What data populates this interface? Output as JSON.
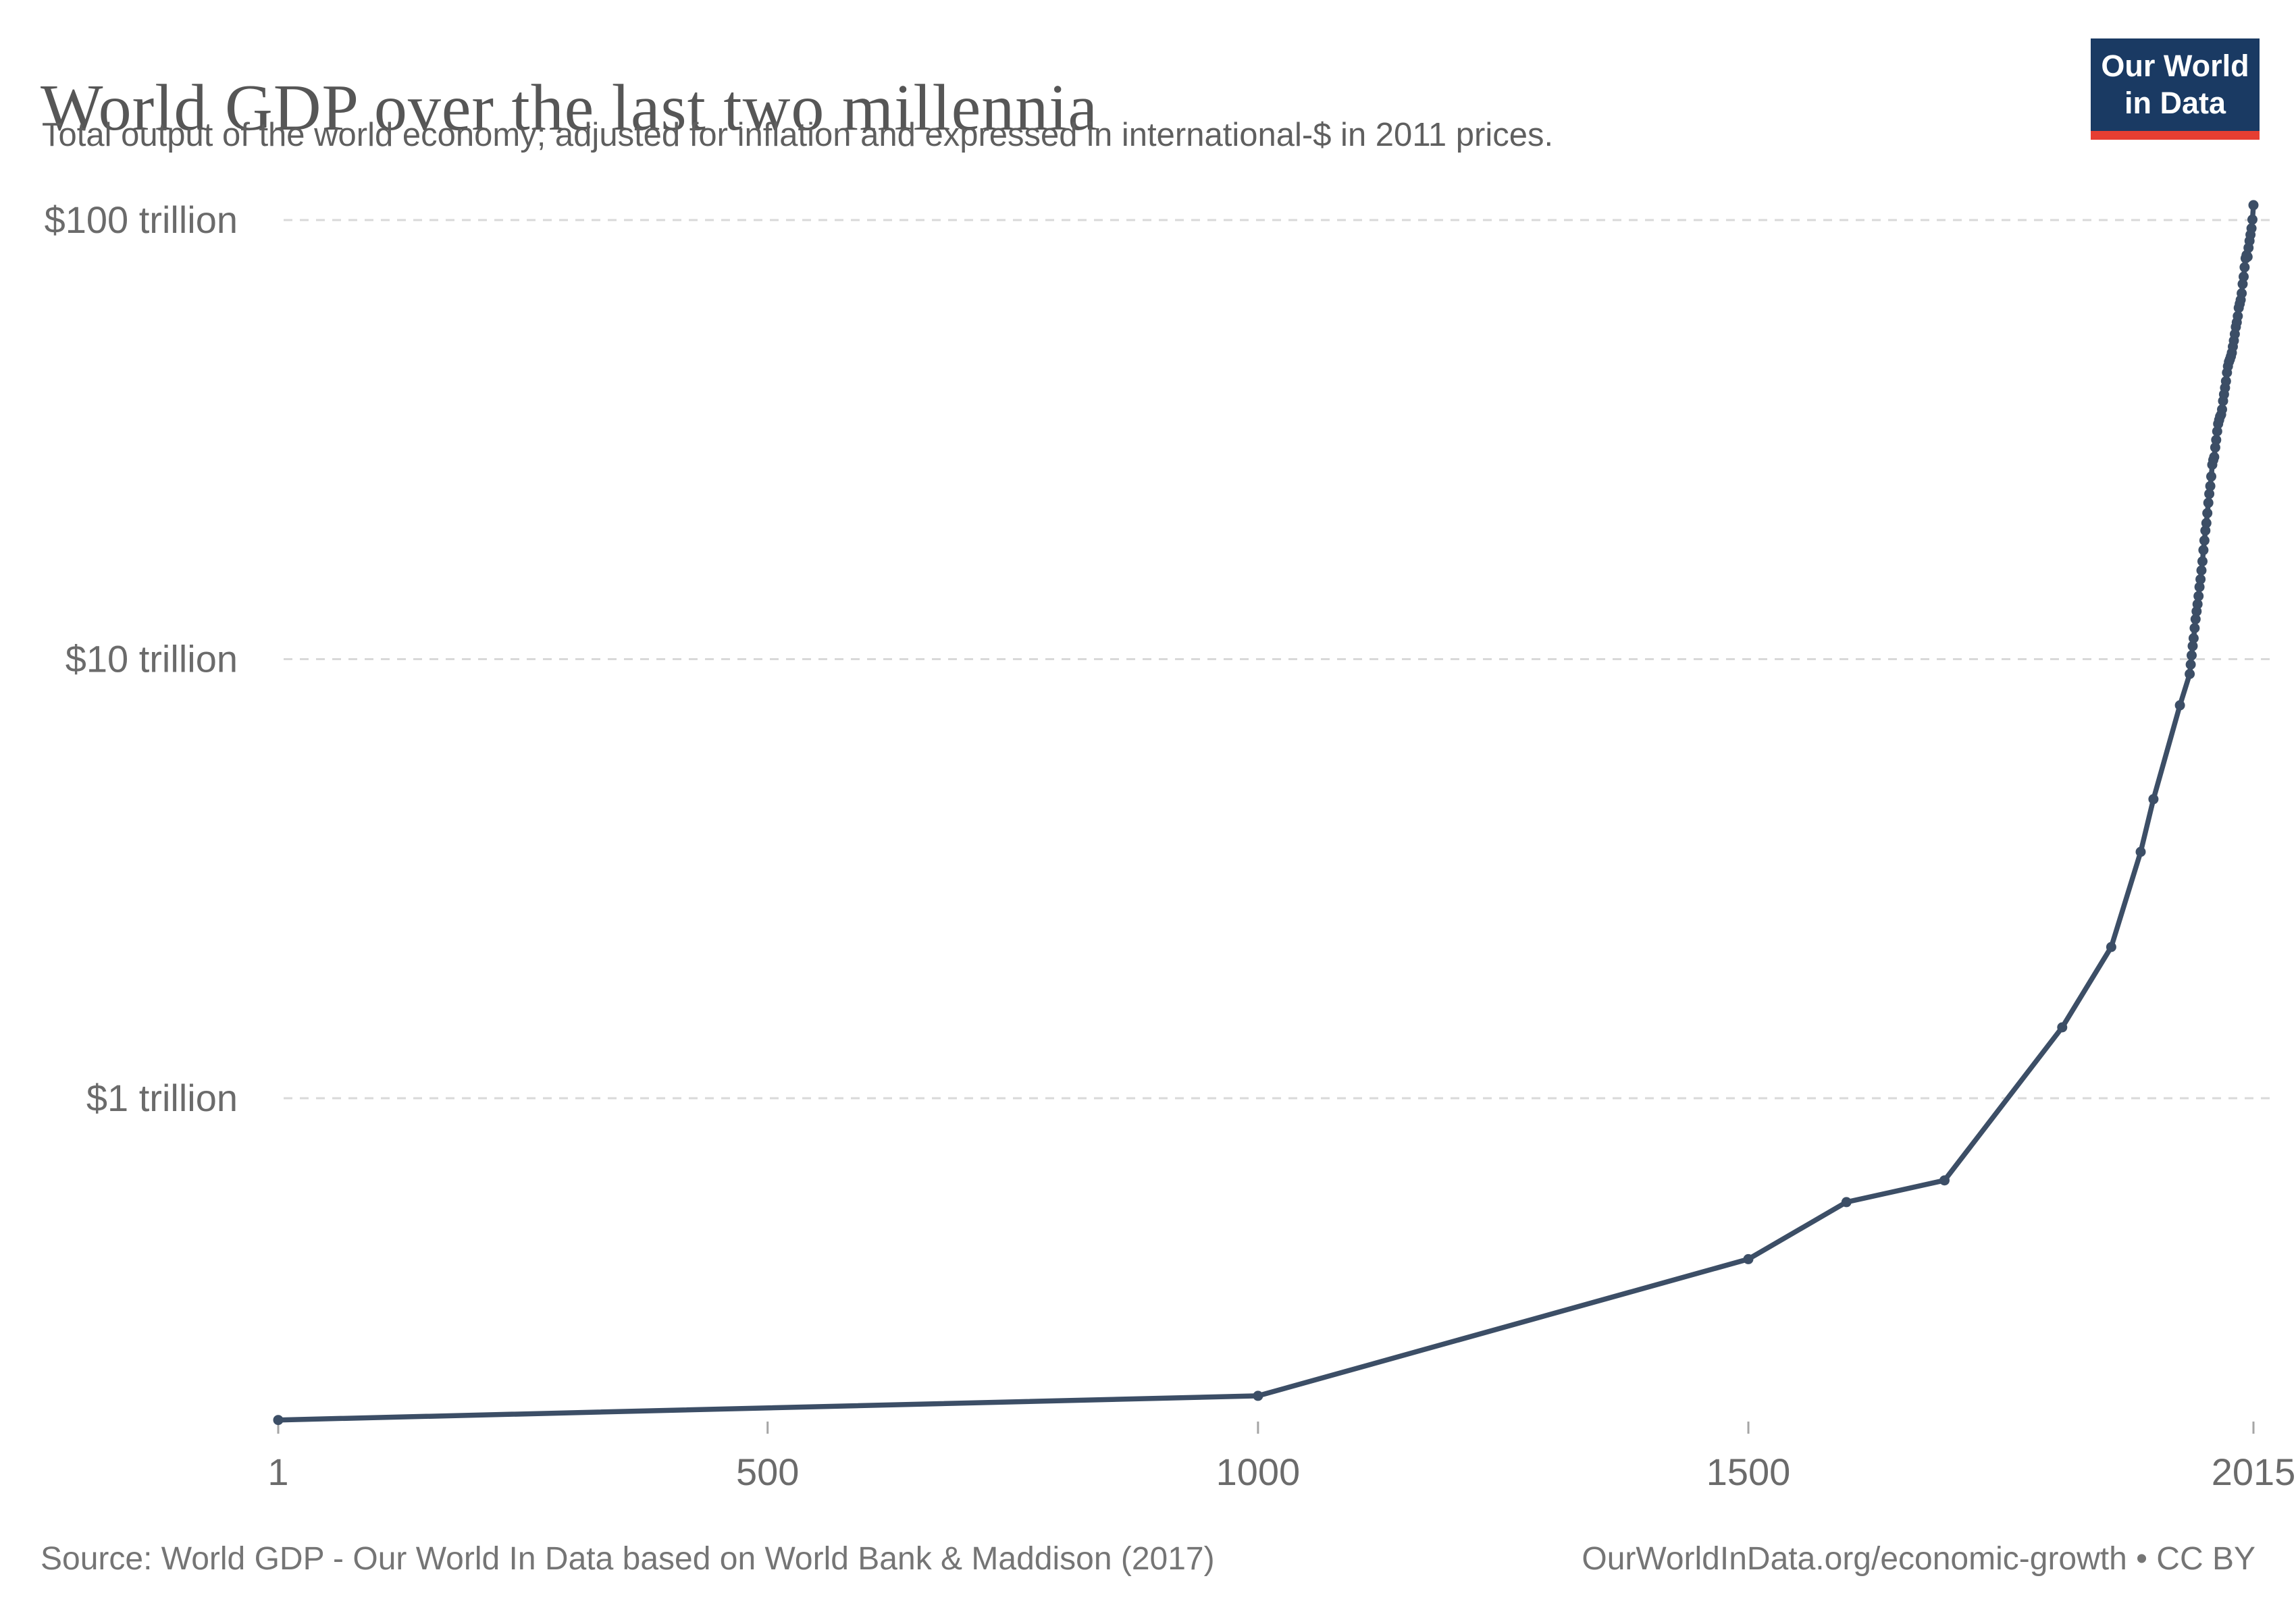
{
  "header": {
    "title": "World GDP over the last two millennia",
    "subtitle": "Total output of the world economy; adjusted for inflation and expressed in international-$ in 2011 prices.",
    "logo": {
      "line1": "Our World",
      "line2": "in Data",
      "bg_color": "#1a3a63",
      "bar_color": "#e63e32",
      "text_color": "#ffffff"
    }
  },
  "footer": {
    "source": "Source: World GDP - Our World In Data based on World Bank & Maddison (2017)",
    "link": "OurWorldInData.org/economic-growth",
    "license_suffix": " • CC BY"
  },
  "chart_data": {
    "type": "line",
    "title": "World GDP over the last two millennia",
    "xlabel": "",
    "ylabel": "",
    "unit": "trillion international-$ (2011 prices)",
    "y_scale": "log",
    "grid": "horizontal-dashed",
    "legend_position": "none",
    "line_color": "#3c4e66",
    "grid_color": "#d9d9d9",
    "tick_color": "#a5a5a5",
    "label_color": "#6b6b6b",
    "x_range": [
      1,
      2015
    ],
    "y_ticks": [
      {
        "label": "$100 trillion",
        "value": 100
      },
      {
        "label": "$10 trillion",
        "value": 10
      },
      {
        "label": "$1 trillion",
        "value": 1
      }
    ],
    "x_ticks": [
      {
        "label": "1",
        "year": 1
      },
      {
        "label": "500",
        "year": 500
      },
      {
        "label": "1000",
        "year": 1000
      },
      {
        "label": "1500",
        "year": 1500
      },
      {
        "label": "2015",
        "year": 2015
      }
    ],
    "series": [
      {
        "name": "World GDP",
        "points": [
          [
            1,
            0.185
          ],
          [
            1000,
            0.21
          ],
          [
            1500,
            0.43
          ],
          [
            1600,
            0.58
          ],
          [
            1700,
            0.65
          ],
          [
            1820,
            1.45
          ],
          [
            1870,
            2.21
          ],
          [
            1900,
            3.64
          ],
          [
            1913,
            4.8
          ],
          [
            1940,
            7.85
          ],
          [
            1950,
            9.25
          ],
          [
            1951,
            9.72
          ],
          [
            1952,
            10.2
          ],
          [
            1953,
            10.71
          ],
          [
            1954,
            11.16
          ],
          [
            1955,
            11.77
          ],
          [
            1956,
            12.33
          ],
          [
            1957,
            12.85
          ],
          [
            1958,
            13.34
          ],
          [
            1959,
            13.92
          ],
          [
            1960,
            14.6
          ],
          [
            1961,
            15.2
          ],
          [
            1962,
            15.93
          ],
          [
            1963,
            16.7
          ],
          [
            1964,
            17.72
          ],
          [
            1965,
            18.63
          ],
          [
            1966,
            19.63
          ],
          [
            1967,
            20.41
          ],
          [
            1968,
            21.5
          ],
          [
            1969,
            22.7
          ],
          [
            1970,
            23.79
          ],
          [
            1971,
            24.78
          ],
          [
            1972,
            26.06
          ],
          [
            1973,
            27.72
          ],
          [
            1974,
            28.42
          ],
          [
            1975,
            28.87
          ],
          [
            1976,
            30.34
          ],
          [
            1977,
            31.57
          ],
          [
            1978,
            33.02
          ],
          [
            1979,
            34.35
          ],
          [
            1980,
            35.05
          ],
          [
            1981,
            35.7
          ],
          [
            1982,
            36.04
          ],
          [
            1983,
            37.05
          ],
          [
            1984,
            38.73
          ],
          [
            1985,
            40.09
          ],
          [
            1986,
            41.49
          ],
          [
            1987,
            42.96
          ],
          [
            1988,
            44.93
          ],
          [
            1989,
            46.45
          ],
          [
            1990,
            47.56
          ],
          [
            1991,
            48.17
          ],
          [
            1992,
            48.93
          ],
          [
            1993,
            49.87
          ],
          [
            1994,
            51.49
          ],
          [
            1995,
            53.12
          ],
          [
            1996,
            55.0
          ],
          [
            1997,
            57.08
          ],
          [
            1998,
            58.49
          ],
          [
            1999,
            60.43
          ],
          [
            2000,
            63.1
          ],
          [
            2001,
            64.45
          ],
          [
            2002,
            65.78
          ],
          [
            2003,
            68.11
          ],
          [
            2004,
            71.49
          ],
          [
            2005,
            74.3
          ],
          [
            2006,
            78.07
          ],
          [
            2007,
            81.83
          ],
          [
            2008,
            83.21
          ],
          [
            2009,
            82.45
          ],
          [
            2010,
            86.45
          ],
          [
            2011,
            89.63
          ],
          [
            2012,
            92.58
          ],
          [
            2013,
            95.75
          ],
          [
            2014,
            100.25
          ],
          [
            2015,
            108.12
          ]
        ]
      }
    ]
  }
}
